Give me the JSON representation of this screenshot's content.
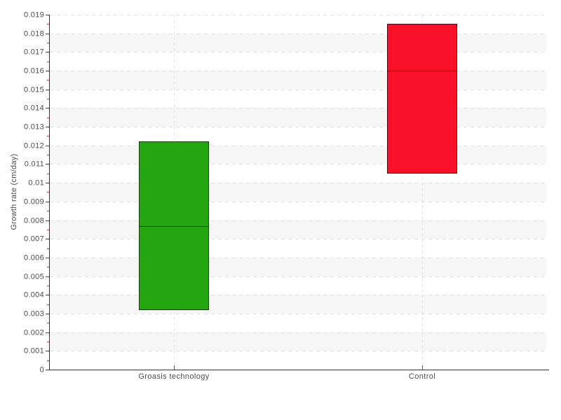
{
  "chart_data": {
    "type": "bar",
    "subtype": "floating-range-box",
    "title": "",
    "xlabel": "",
    "ylabel": "Growth rate (cm/day)",
    "categories": [
      "Groasis technology",
      "Control"
    ],
    "series": [
      {
        "name": "Groasis technology",
        "low": 0.0032,
        "median": 0.0077,
        "high": 0.0122,
        "fill": "#23a60f",
        "stroke": "#153f0a"
      },
      {
        "name": "Control",
        "low": 0.0105,
        "median": 0.016,
        "high": 0.0185,
        "fill": "#f91129",
        "stroke": "#45060e"
      }
    ],
    "ylim": [
      0,
      0.019
    ],
    "y_major_step": 0.001,
    "y_minor_step": 0.0005,
    "y_tick_labels": [
      "0",
      "0.001",
      "0.002",
      "0.003",
      "0.004",
      "0.005",
      "0.006",
      "0.007",
      "0.008",
      "0.009",
      "0.01",
      "0.011",
      "0.012",
      "0.013",
      "0.014",
      "0.015",
      "0.016",
      "0.017",
      "0.018",
      "0.019"
    ],
    "grid": true,
    "legend": "none",
    "band_colors": [
      "#ffffff",
      "#f6f6f6"
    ],
    "gridline_color": "#e1e1e1",
    "axis_color": "#333333",
    "major_tick_color": "#444444",
    "minor_tick_color": "#dd3333",
    "text_color": "#4d4d4d"
  }
}
